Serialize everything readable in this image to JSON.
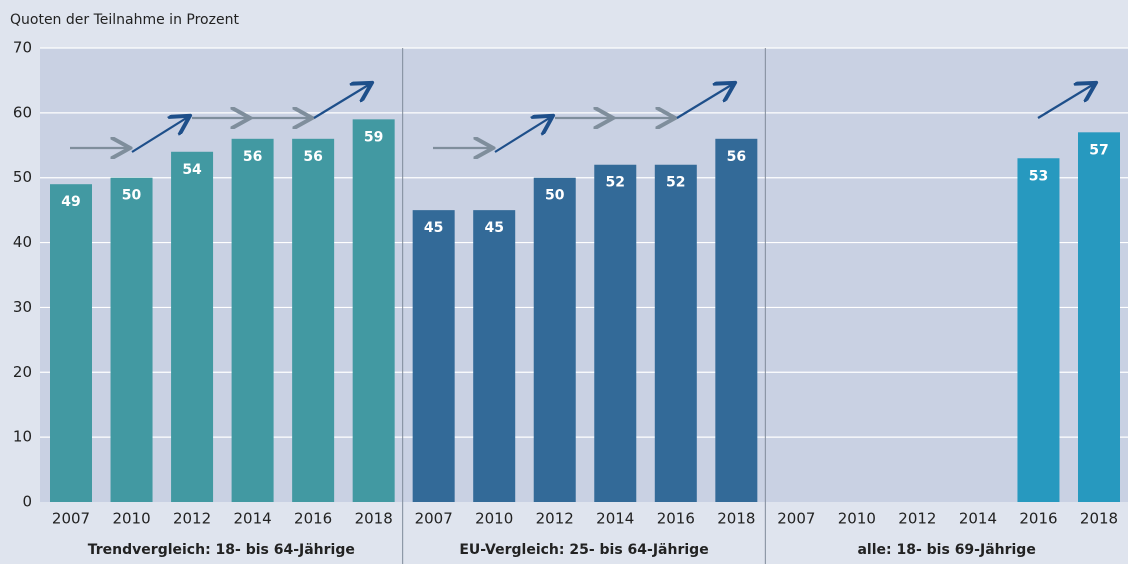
{
  "chart_data": {
    "type": "bar",
    "title": "Quoten der Teilnahme in Prozent",
    "ylim": [
      0,
      70
    ],
    "yticks": [
      0,
      10,
      20,
      30,
      40,
      50,
      60,
      70
    ],
    "grid": true,
    "panels": [
      {
        "label": "Trendvergleich: 18- bis 64-Jährige",
        "color": "#4299a2",
        "categories": [
          "2007",
          "2010",
          "2012",
          "2014",
          "2016",
          "2018"
        ],
        "values": [
          49,
          50,
          54,
          56,
          56,
          59
        ]
      },
      {
        "label": "EU-Vergleich: 25- bis 64-Jährige",
        "color": "#336a98",
        "categories": [
          "2007",
          "2010",
          "2012",
          "2014",
          "2016",
          "2018"
        ],
        "values": [
          45,
          45,
          50,
          52,
          52,
          56
        ]
      },
      {
        "label": "alle: 18- bis 69-Jährige",
        "color": "#2799bf",
        "categories": [
          "2007",
          "2010",
          "2012",
          "2014",
          "2016",
          "2018"
        ],
        "values": [
          null,
          null,
          null,
          null,
          53,
          57
        ]
      }
    ]
  }
}
